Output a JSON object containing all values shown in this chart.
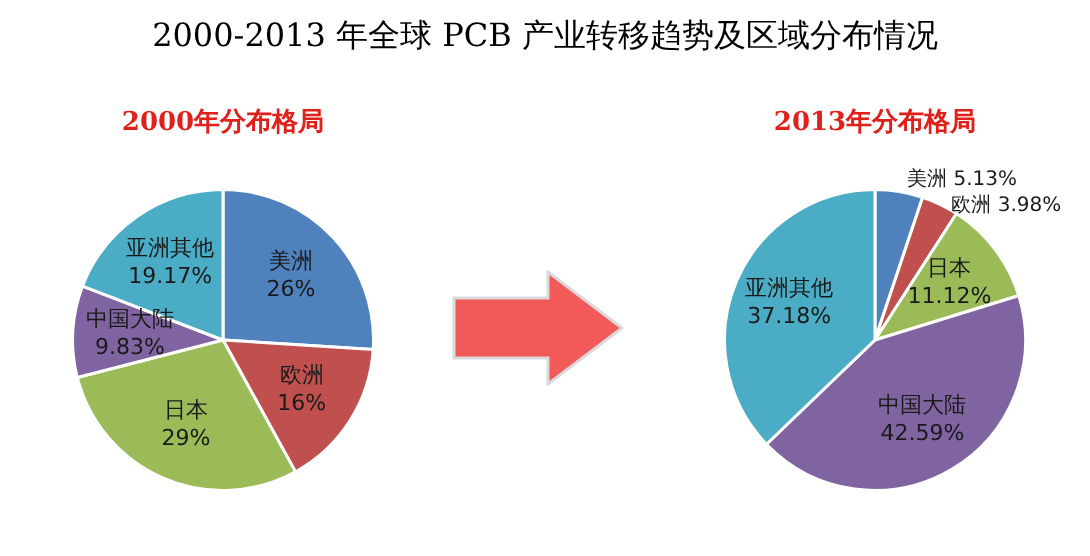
{
  "chart_data": [
    {
      "type": "pie",
      "title": "2000-2013 年全球 PCB 产业转移趋势及区域分布情况",
      "subtitle": "2000年分布格局",
      "categories": [
        "美洲",
        "欧洲",
        "日本",
        "中国大陆",
        "亚洲其他"
      ],
      "values": [
        26,
        16,
        29,
        9.83,
        19.17
      ],
      "value_labels": [
        "26%",
        "16%",
        "29%",
        "9.83%",
        "19.17%"
      ],
      "colors": [
        "#4f81bd",
        "#c0504d",
        "#9bbb59",
        "#8064a2",
        "#4bacc6"
      ],
      "legend": false
    },
    {
      "type": "pie",
      "subtitle": "2013年分布格局",
      "categories": [
        "美洲",
        "欧洲",
        "日本",
        "中国大陆",
        "亚洲其他"
      ],
      "values": [
        5.13,
        3.98,
        11.12,
        42.59,
        37.18
      ],
      "value_labels": [
        "5.13%",
        "3.98%",
        "11.12%",
        "42.59%",
        "37.18%"
      ],
      "colors": [
        "#4f81bd",
        "#c0504d",
        "#9bbb59",
        "#8064a2",
        "#4bacc6"
      ],
      "legend": false
    }
  ]
}
